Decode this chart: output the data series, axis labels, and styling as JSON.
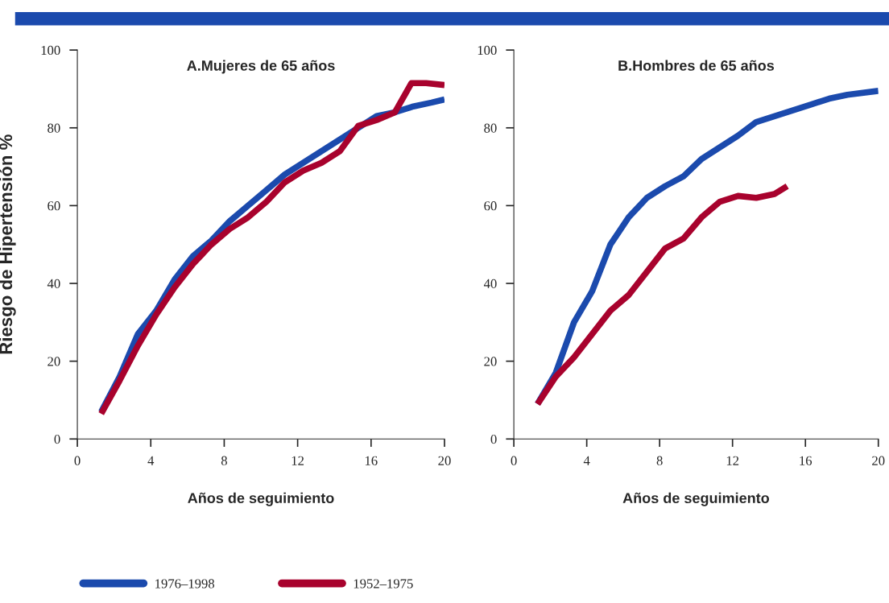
{
  "chart_data": [
    {
      "type": "line",
      "title": "A.Mujeres de 65 años",
      "xlabel": "Años de seguimiento",
      "ylabel": "Riesgo de Hipertensión %",
      "xlim": [
        0,
        20
      ],
      "ylim": [
        0,
        100
      ],
      "xticks": [
        0,
        4,
        8,
        12,
        16,
        20
      ],
      "yticks": [
        0,
        20,
        40,
        60,
        80,
        100
      ],
      "grid": false,
      "legend": "bottom",
      "series": [
        {
          "name": "1976–1998",
          "color": "#1b4aad",
          "x": [
            1.3,
            2.3,
            3.3,
            4.3,
            5.3,
            6.3,
            7.3,
            8.3,
            9.3,
            10.3,
            11.3,
            12.3,
            13.3,
            14.3,
            15.3,
            16.3,
            17.3,
            18.3,
            19.3,
            20
          ],
          "values": [
            7,
            16,
            27,
            33,
            41,
            47,
            51,
            56,
            60,
            64,
            68,
            71,
            74,
            77,
            80,
            83,
            84,
            85.5,
            86.5,
            87.3
          ]
        },
        {
          "name": "1952–1975",
          "color": "#a8022d",
          "x": [
            1.3,
            2.3,
            3.3,
            4.3,
            5.3,
            6.3,
            7.3,
            8.3,
            9.3,
            10.3,
            11.3,
            12.3,
            13.3,
            14.3,
            15.3,
            16.3,
            17.3,
            18.2,
            19,
            20
          ],
          "values": [
            6.5,
            15,
            24,
            32,
            39,
            45,
            50,
            54,
            57,
            61,
            66,
            69,
            71,
            74,
            80.5,
            82,
            84,
            91.5,
            91.5,
            91
          ]
        }
      ]
    },
    {
      "type": "line",
      "title": "B.Hombres de 65 años",
      "xlabel": "Años de seguimiento",
      "xlim": [
        0,
        20
      ],
      "ylim": [
        0,
        100
      ],
      "xticks": [
        0,
        4,
        8,
        12,
        16,
        20
      ],
      "yticks": [
        0,
        20,
        40,
        60,
        80,
        100
      ],
      "grid": false,
      "series": [
        {
          "color": "#1b4aad",
          "x": [
            1.3,
            2.3,
            3.3,
            4.3,
            5.3,
            6.3,
            7.3,
            8.3,
            9.3,
            10.3,
            11.3,
            12.3,
            13.3,
            14.3,
            15.3,
            16.3,
            17.3,
            18.3,
            20
          ],
          "values": [
            9,
            17,
            30,
            38,
            50,
            57,
            62,
            65,
            67.5,
            72,
            75,
            78,
            81.5,
            83,
            84.5,
            86,
            87.5,
            88.5,
            89.5
          ]
        },
        {
          "color": "#a8022d",
          "x": [
            1.3,
            2.3,
            3.3,
            4.3,
            5.3,
            6.3,
            7.3,
            8.3,
            9.3,
            10.3,
            11.3,
            12.3,
            13.3,
            14.3,
            15
          ],
          "values": [
            9,
            16,
            21,
            27,
            33,
            37,
            43,
            49,
            51.5,
            57,
            61,
            62.5,
            62,
            63,
            65
          ]
        }
      ]
    }
  ]
}
